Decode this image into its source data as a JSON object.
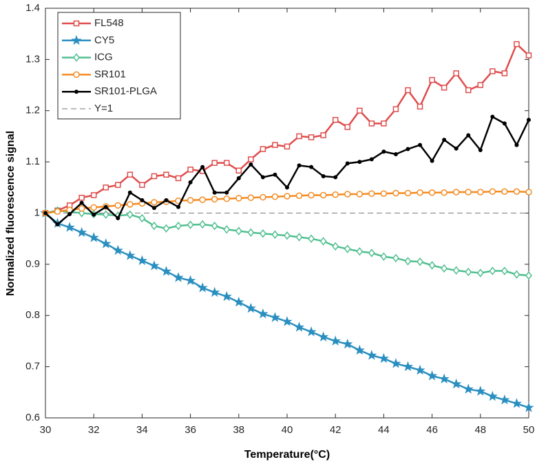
{
  "chart_data": {
    "type": "line",
    "xlabel": "Temperature(°C)",
    "ylabel": "Normalized fluorescence signal",
    "x": [
      30,
      30.5,
      31,
      31.5,
      32,
      32.5,
      33,
      33.5,
      34,
      34.5,
      35,
      35.5,
      36,
      36.5,
      37,
      37.5,
      38,
      38.5,
      39,
      39.5,
      40,
      40.5,
      41,
      41.5,
      42,
      42.5,
      43,
      43.5,
      44,
      44.5,
      45,
      45.5,
      46,
      46.5,
      47,
      47.5,
      48,
      48.5,
      49,
      49.5,
      50
    ],
    "xlim": [
      30,
      50
    ],
    "xticks": [
      30,
      32,
      34,
      36,
      38,
      40,
      42,
      44,
      46,
      48,
      50
    ],
    "ylim": [
      0.6,
      1.4
    ],
    "yticks": [
      0.6,
      0.7,
      0.8,
      0.9,
      1,
      1.1,
      1.2,
      1.3,
      1.4
    ],
    "legend": "upper left",
    "series": [
      {
        "name": "FL548",
        "color": "#e04b4b",
        "marker": "square",
        "values": [
          1.0,
          1.005,
          1.015,
          1.03,
          1.035,
          1.05,
          1.055,
          1.075,
          1.055,
          1.072,
          1.075,
          1.068,
          1.085,
          1.082,
          1.098,
          1.098,
          1.083,
          1.105,
          1.125,
          1.133,
          1.13,
          1.15,
          1.148,
          1.152,
          1.182,
          1.168,
          1.2,
          1.175,
          1.175,
          1.203,
          1.24,
          1.208,
          1.26,
          1.245,
          1.273,
          1.24,
          1.25,
          1.277,
          1.273,
          1.33,
          1.308
        ]
      },
      {
        "name": "CY5",
        "color": "#2a8fc0",
        "marker": "star",
        "values": [
          1.0,
          0.98,
          0.972,
          0.962,
          0.952,
          0.94,
          0.927,
          0.917,
          0.907,
          0.897,
          0.886,
          0.874,
          0.868,
          0.854,
          0.845,
          0.837,
          0.826,
          0.814,
          0.803,
          0.796,
          0.788,
          0.777,
          0.768,
          0.758,
          0.75,
          0.744,
          0.732,
          0.722,
          0.716,
          0.706,
          0.7,
          0.693,
          0.682,
          0.676,
          0.666,
          0.656,
          0.652,
          0.642,
          0.635,
          0.628,
          0.62
        ]
      },
      {
        "name": "ICG",
        "color": "#4fbf8f",
        "marker": "diamond",
        "values": [
          1.0,
          1.005,
          1.002,
          1.0,
          0.998,
          0.997,
          0.995,
          0.997,
          0.99,
          0.975,
          0.97,
          0.975,
          0.977,
          0.978,
          0.975,
          0.968,
          0.965,
          0.962,
          0.96,
          0.958,
          0.956,
          0.953,
          0.95,
          0.945,
          0.935,
          0.93,
          0.925,
          0.922,
          0.915,
          0.912,
          0.906,
          0.905,
          0.898,
          0.892,
          0.888,
          0.885,
          0.883,
          0.887,
          0.887,
          0.88,
          0.878
        ]
      },
      {
        "name": "SR101",
        "color": "#f58a1f",
        "marker": "circle",
        "values": [
          1.0,
          1.003,
          1.006,
          1.009,
          1.011,
          1.013,
          1.015,
          1.017,
          1.019,
          1.021,
          1.022,
          1.024,
          1.025,
          1.026,
          1.027,
          1.028,
          1.029,
          1.03,
          1.031,
          1.032,
          1.033,
          1.034,
          1.035,
          1.035,
          1.036,
          1.037,
          1.037,
          1.038,
          1.038,
          1.039,
          1.039,
          1.04,
          1.04,
          1.04,
          1.041,
          1.041,
          1.041,
          1.042,
          1.042,
          1.042,
          1.041
        ]
      },
      {
        "name": "SR101-PLGA",
        "color": "#000000",
        "marker": "dot",
        "values": [
          1.0,
          0.978,
          0.998,
          1.02,
          0.997,
          1.012,
          0.99,
          1.04,
          1.025,
          1.01,
          1.025,
          1.012,
          1.06,
          1.09,
          1.04,
          1.04,
          1.068,
          1.095,
          1.07,
          1.075,
          1.05,
          1.093,
          1.09,
          1.072,
          1.07,
          1.097,
          1.1,
          1.105,
          1.12,
          1.115,
          1.125,
          1.133,
          1.102,
          1.143,
          1.126,
          1.152,
          1.123,
          1.188,
          1.175,
          1.133,
          1.182
        ]
      }
    ],
    "reference_lines": [
      {
        "name": "Y=1",
        "y": 1,
        "color": "#777777",
        "dashed": true
      }
    ]
  }
}
